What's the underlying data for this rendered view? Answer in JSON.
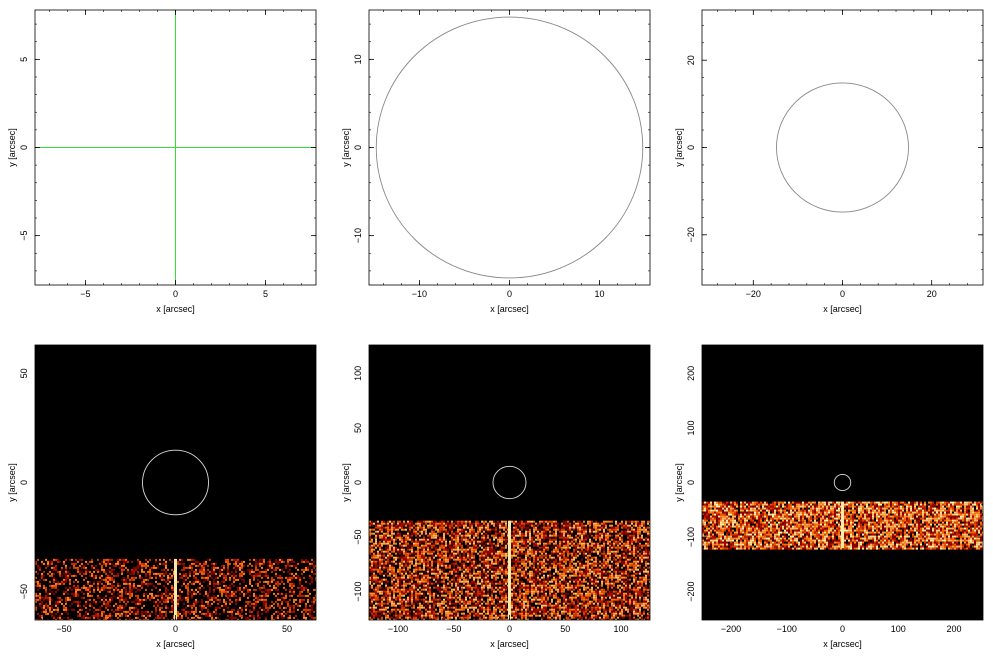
{
  "chart_data": [
    {
      "type": "line",
      "xlabel": "x [arcsec]",
      "ylabel": "y [arcsec]",
      "xlim": [
        -7.8,
        7.8
      ],
      "ylim": [
        -7.8,
        7.8
      ],
      "xticks": [
        -5,
        0,
        5
      ],
      "yticks": [
        -5,
        0,
        5
      ],
      "tick_labels_x": [
        "−5",
        "0",
        "5"
      ],
      "tick_labels_y": [
        "−5",
        "0",
        "5"
      ],
      "background": "#ffffff",
      "crosshair": {
        "x": 0,
        "y": 0,
        "color": "#33dd33"
      }
    },
    {
      "type": "line",
      "xlabel": "x [arcsec]",
      "ylabel": "y [arcsec]",
      "xlim": [
        -15.6,
        15.6
      ],
      "ylim": [
        -15.6,
        15.6
      ],
      "xticks": [
        -10,
        0,
        10
      ],
      "yticks": [
        -10,
        0,
        10
      ],
      "tick_labels_x": [
        "−10",
        "0",
        "10"
      ],
      "tick_labels_y": [
        "−10",
        "0",
        "10"
      ],
      "background": "#ffffff",
      "circle": {
        "cx": 0,
        "cy": 0,
        "r": 14.8,
        "color": "#888888"
      }
    },
    {
      "type": "line",
      "xlabel": "x [arcsec]",
      "ylabel": "y [arcsec]",
      "xlim": [
        -31.5,
        31.5
      ],
      "ylim": [
        -31.5,
        31.5
      ],
      "xticks": [
        -20,
        0,
        20
      ],
      "yticks": [
        -20,
        0,
        20
      ],
      "tick_labels_x": [
        "−20",
        "0",
        "20"
      ],
      "tick_labels_y": [
        "−20",
        "0",
        "20"
      ],
      "background": "#ffffff",
      "circle": {
        "cx": 0,
        "cy": 0,
        "r": 14.8,
        "color": "#888888"
      }
    },
    {
      "type": "heatmap",
      "xlabel": "x [arcsec]",
      "ylabel": "y [arcsec]",
      "xlim": [
        -63,
        63
      ],
      "ylim": [
        -63,
        63
      ],
      "xticks": [
        -50,
        0,
        50
      ],
      "yticks": [
        -50,
        0,
        50
      ],
      "tick_labels_x": [
        "−50",
        "0",
        "50"
      ],
      "tick_labels_y": [
        "−50",
        "0",
        "50"
      ],
      "background": "#000000",
      "circle": {
        "cx": 0,
        "cy": 0,
        "r": 14.8,
        "color": "#dddddd"
      },
      "emission_band": {
        "y_range": [
          -63,
          -35
        ],
        "density": 0.42
      },
      "streak": {
        "x": 0,
        "y_range": [
          -63,
          -35
        ]
      }
    },
    {
      "type": "heatmap",
      "xlabel": "x [arcsec]",
      "ylabel": "y [arcsec]",
      "xlim": [
        -126,
        126
      ],
      "ylim": [
        -126,
        126
      ],
      "xticks": [
        -100,
        -50,
        0,
        50,
        100
      ],
      "yticks": [
        -100,
        -50,
        0,
        50,
        100
      ],
      "tick_labels_x": [
        "−100",
        "−50",
        "0",
        "50",
        "100"
      ],
      "tick_labels_y": [
        "−100",
        "−50",
        "0",
        "50",
        "100"
      ],
      "background": "#000000",
      "circle": {
        "cx": 0,
        "cy": 0,
        "r": 14.8,
        "color": "#dddddd"
      },
      "emission_band": {
        "y_range": [
          -126,
          -35
        ],
        "density": 0.7
      },
      "streak": {
        "x": 0,
        "y_range": [
          -126,
          -35
        ]
      }
    },
    {
      "type": "heatmap",
      "xlabel": "x [arcsec]",
      "ylabel": "y [arcsec]",
      "xlim": [
        -252,
        252
      ],
      "ylim": [
        -252,
        252
      ],
      "xticks": [
        -200,
        -100,
        0,
        100,
        200
      ],
      "yticks": [
        -200,
        -100,
        0,
        100,
        200
      ],
      "tick_labels_x": [
        "−200",
        "−100",
        "0",
        "100",
        "200"
      ],
      "tick_labels_y": [
        "−200",
        "−100",
        "0",
        "100",
        "200"
      ],
      "background": "#000000",
      "circle": {
        "cx": 0,
        "cy": 0,
        "r": 14.8,
        "color": "#dddddd"
      },
      "emission_band": {
        "y_range": [
          -120,
          -35
        ],
        "density": 0.92
      },
      "streak": {
        "x": 0,
        "y_range": [
          -120,
          -35
        ]
      }
    }
  ]
}
